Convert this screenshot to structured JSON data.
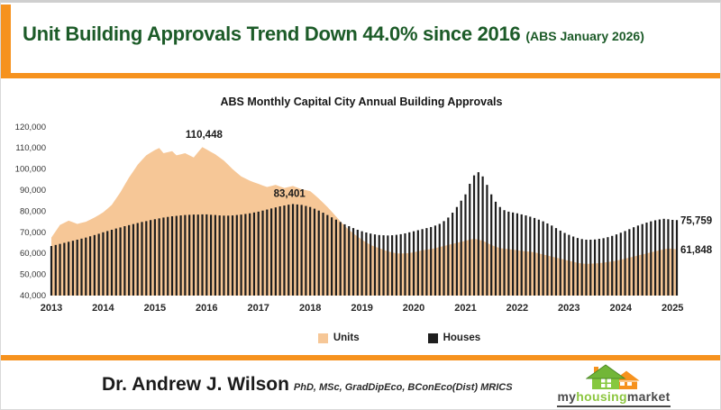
{
  "header": {
    "title": "Unit Building Approvals Trend Down 44.0% since 2016",
    "subtitle": "(ABS January 2026)"
  },
  "chart_data": {
    "type": "area+bar",
    "title": "ABS Monthly Capital City Annual Building Approvals",
    "xlabel": "",
    "ylabel": "",
    "ylim": [
      40000,
      120000
    ],
    "y_tick_values": [
      40000,
      50000,
      60000,
      70000,
      80000,
      90000,
      100000,
      110000,
      120000
    ],
    "x_ticks": [
      "2013",
      "2014",
      "2015",
      "2016",
      "2017",
      "2018",
      "2019",
      "2020",
      "2021",
      "2022",
      "2023",
      "2024",
      "2025"
    ],
    "x_start_year": 2013,
    "points_per_year": 12,
    "unit_scale": 1000,
    "grid": false,
    "legend_position": "bottom",
    "series": [
      {
        "name": "Units",
        "render": "area",
        "color": "#F6C797",
        "values": [
          67.5,
          70.5,
          73.5,
          74.5,
          75.5,
          74.8,
          74,
          74.5,
          75,
          76,
          77,
          78.2,
          79.5,
          81.2,
          83,
          86,
          89,
          92.5,
          96,
          99,
          102,
          104.3,
          106.5,
          107.8,
          109,
          110,
          107.5,
          108,
          108.5,
          106.5,
          107,
          107.5,
          106.5,
          105.5,
          108,
          110.4,
          109.3,
          108.1,
          107,
          105.5,
          104,
          102,
          100,
          98.2,
          96.5,
          95.5,
          94.5,
          93.7,
          93,
          92.2,
          91.5,
          92,
          92.5,
          91.7,
          91,
          91.5,
          92,
          91.2,
          90.5,
          90,
          89.5,
          87.8,
          86,
          84,
          82,
          79.8,
          77.5,
          75.2,
          73,
          71.2,
          69.5,
          68,
          66.5,
          65.2,
          64,
          63.2,
          62.5,
          61.7,
          61,
          60.5,
          60,
          60,
          60,
          60.2,
          60.5,
          61,
          61.5,
          61.8,
          62,
          62.5,
          63,
          63.5,
          64,
          64.5,
          65,
          65.5,
          66,
          66.5,
          67,
          66.5,
          66,
          65,
          64,
          63.2,
          62.5,
          62.2,
          62,
          61.8,
          61.5,
          61.2,
          61,
          60.8,
          60.5,
          60,
          59.5,
          59,
          58.5,
          58,
          57.5,
          57,
          56.5,
          56,
          55.5,
          55.2,
          55,
          55.1,
          55.2,
          55.4,
          55.6,
          55.9,
          56.2,
          56.6,
          57,
          57.5,
          58,
          58.5,
          59,
          59.5,
          60,
          60.5,
          61,
          61.5,
          62,
          62.2,
          62.3,
          61.8
        ]
      },
      {
        "name": "Houses",
        "render": "bar",
        "color": "#1e1e1e",
        "values": [
          63.5,
          64,
          64.5,
          65,
          65.5,
          66,
          66.5,
          67,
          67.5,
          68.1,
          68.7,
          69.3,
          70,
          70.6,
          71.2,
          71.8,
          72.3,
          72.9,
          73.4,
          73.9,
          74.4,
          74.9,
          75.3,
          75.8,
          76.2,
          76.6,
          77,
          77.3,
          77.6,
          77.8,
          78,
          78.2,
          78.3,
          78.4,
          78.4,
          78.5,
          78.5,
          78.3,
          78.2,
          78,
          77.9,
          77.9,
          78,
          78.2,
          78.4,
          78.7,
          79,
          79.4,
          79.8,
          80.3,
          80.8,
          81.3,
          81.8,
          82.3,
          82.7,
          83.1,
          83.4,
          83.2,
          83,
          82.5,
          82,
          81.2,
          80.3,
          79.3,
          78.2,
          77.1,
          76,
          74.9,
          73.8,
          72.9,
          72,
          71.2,
          70.5,
          69.9,
          69.4,
          69,
          68.7,
          68.6,
          68.5,
          68.6,
          68.8,
          69.1,
          69.5,
          70,
          70.5,
          71,
          71.5,
          72,
          72.5,
          73.2,
          74,
          75.3,
          77,
          79.3,
          82,
          85,
          88,
          93,
          97,
          98.5,
          96.5,
          92.5,
          88,
          84.5,
          82,
          80.5,
          79.8,
          79.4,
          79,
          78.5,
          78,
          77.4,
          76.8,
          76,
          75.2,
          74.2,
          73.2,
          72,
          70.8,
          69.7,
          68.8,
          68,
          67.3,
          66.8,
          66.5,
          66.5,
          66.6,
          66.9,
          67.2,
          67.7,
          68.3,
          69,
          69.8,
          70.6,
          71.5,
          72.4,
          73.2,
          73.9,
          74.6,
          75.2,
          75.7,
          76.1,
          76.4,
          76.2,
          75.9,
          75.8
        ]
      }
    ],
    "annotations": [
      {
        "text": "110,448",
        "year": 2015.95,
        "value": 110448,
        "anchor": "middle",
        "dy": -10
      },
      {
        "text": "83,401",
        "year": 2017.6,
        "value": 83401,
        "anchor": "middle",
        "dy": -8
      },
      {
        "text": "75,759",
        "value": 75759,
        "anchor": "right",
        "dy": 0
      },
      {
        "text": "61,848",
        "value": 61848,
        "anchor": "right",
        "dy": 0
      }
    ],
    "legend": [
      {
        "label": "Units",
        "color": "#F6C797"
      },
      {
        "label": "Houses",
        "color": "#1e1e1e"
      }
    ]
  },
  "footer": {
    "author": "Dr. Andrew J. Wilson",
    "credentials": "PhD, MSc, GradDipEco, BConEco(Dist) MRICS",
    "logo": {
      "part1": "my",
      "part2": "housing",
      "part3": "market"
    }
  },
  "colors": {
    "accent_orange": "#F6921E",
    "title_green": "#1C5B28",
    "units_peach": "#F6C797",
    "houses_black": "#1e1e1e",
    "logo_green": "#8CC63F"
  }
}
